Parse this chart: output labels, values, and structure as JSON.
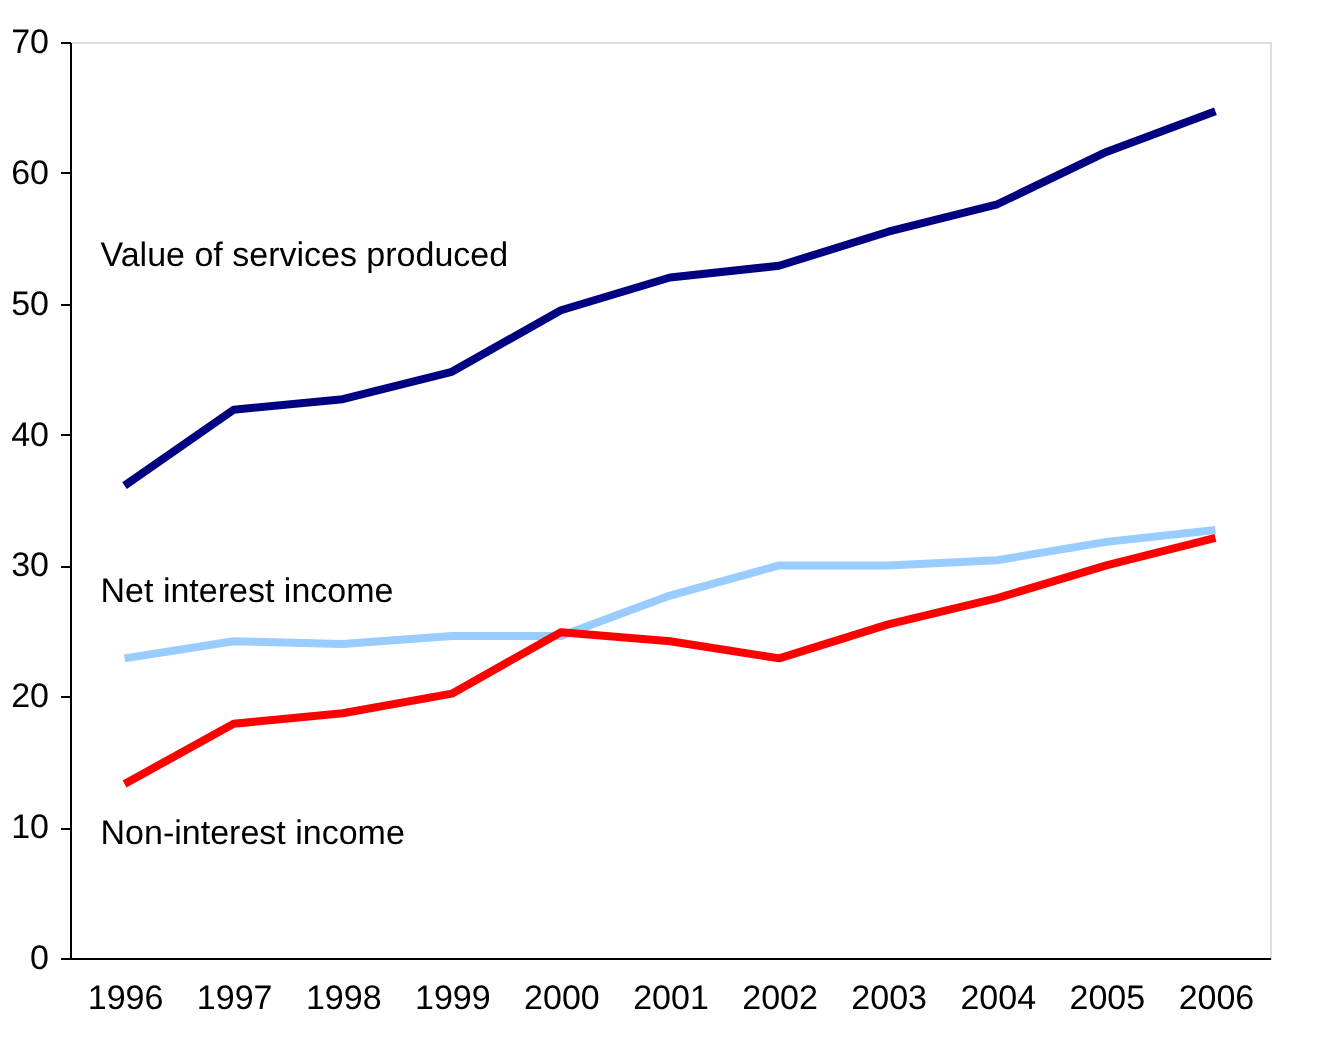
{
  "chart_data": {
    "type": "line",
    "categories": [
      "1996",
      "1997",
      "1998",
      "1999",
      "2000",
      "2001",
      "2002",
      "2003",
      "2004",
      "2005",
      "2006"
    ],
    "series": [
      {
        "name": "Value of services produced",
        "color": "#000080",
        "values": [
          36.1,
          41.9,
          42.7,
          44.8,
          49.5,
          52.0,
          52.9,
          55.5,
          57.6,
          61.6,
          64.7
        ]
      },
      {
        "name": "Net interest income",
        "color": "#99ccff",
        "values": [
          22.9,
          24.2,
          24.0,
          24.6,
          24.6,
          27.7,
          30.0,
          30.0,
          30.4,
          31.8,
          32.7
        ]
      },
      {
        "name": "Non-interest income",
        "color": "#ff0000",
        "values": [
          13.3,
          17.9,
          18.7,
          20.2,
          24.9,
          24.2,
          22.9,
          25.5,
          27.5,
          30.0,
          32.1
        ]
      }
    ],
    "ylim": [
      0,
      70
    ],
    "yticks": [
      0,
      10,
      20,
      30,
      40,
      50,
      60,
      70
    ],
    "grid": false,
    "marker": "none",
    "line_style": "solid"
  }
}
